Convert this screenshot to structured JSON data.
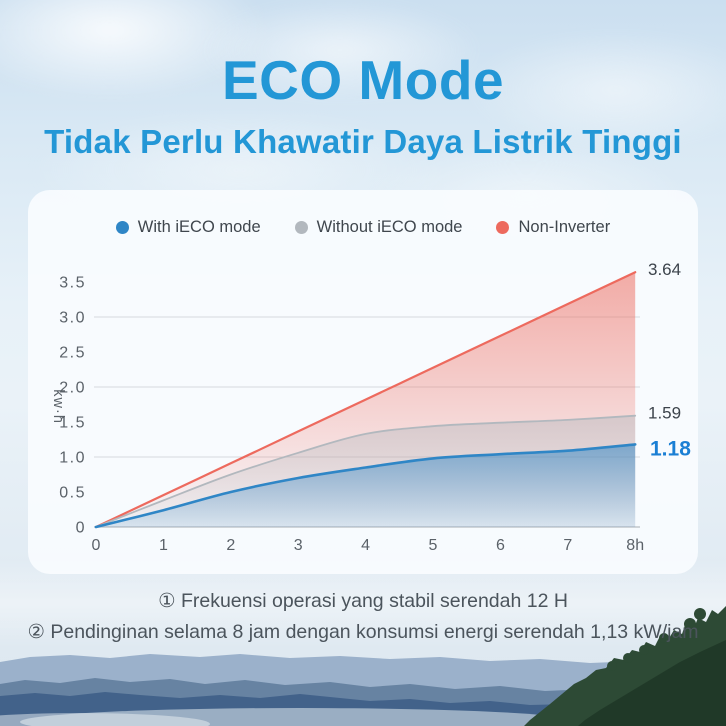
{
  "header": {
    "title": "ECO Mode",
    "subtitle": "Tidak Perlu Khawatir Daya Listrik Tinggi",
    "accent_color": "#2397d6"
  },
  "chart_data": {
    "type": "area",
    "title": "",
    "xlabel": "",
    "ylabel": "kw·h",
    "x": [
      0,
      1,
      2,
      3,
      4,
      5,
      6,
      7,
      8
    ],
    "x_tick_labels": [
      "0",
      "1",
      "2",
      "3",
      "4",
      "5",
      "6",
      "7",
      "8h"
    ],
    "y_ticks": [
      0,
      0.5,
      1.0,
      1.5,
      2.0,
      2.5,
      3.0,
      3.5
    ],
    "y_tick_labels": [
      "0",
      "0.5",
      "1.0",
      "1.5",
      "2.0",
      "2.5",
      "3.0",
      "3.5"
    ],
    "ylim": [
      0,
      3.8
    ],
    "gridlines_at": [
      1.0,
      2.0,
      3.0
    ],
    "grid": "horizontal",
    "legend_position": "top",
    "series": [
      {
        "name": "With iECO mode",
        "color": "#2f86c6",
        "values": [
          0,
          0.24,
          0.5,
          0.7,
          0.85,
          0.98,
          1.04,
          1.09,
          1.18
        ],
        "end_label": "1.18",
        "end_label_color": "#1b7fd4",
        "end_label_bold": true
      },
      {
        "name": "Without iECO mode",
        "color": "#b2b8be",
        "values": [
          0,
          0.38,
          0.75,
          1.06,
          1.33,
          1.44,
          1.49,
          1.53,
          1.59
        ],
        "end_label": "1.59",
        "end_label_color": "#3c434b",
        "end_label_bold": false
      },
      {
        "name": "Non-Inverter",
        "color": "#ed6a5e",
        "values": [
          0,
          0.455,
          0.91,
          1.365,
          1.82,
          2.275,
          2.73,
          3.185,
          3.64
        ],
        "end_label": "3.64",
        "end_label_color": "#3c434b",
        "end_label_bold": false
      }
    ]
  },
  "footnotes": {
    "line1": "① Frekuensi operasi yang stabil serendah 12 H",
    "line2": "② Pendinginan selama 8 jam dengan konsumsi energi serendah 1,13 kW/jam"
  }
}
